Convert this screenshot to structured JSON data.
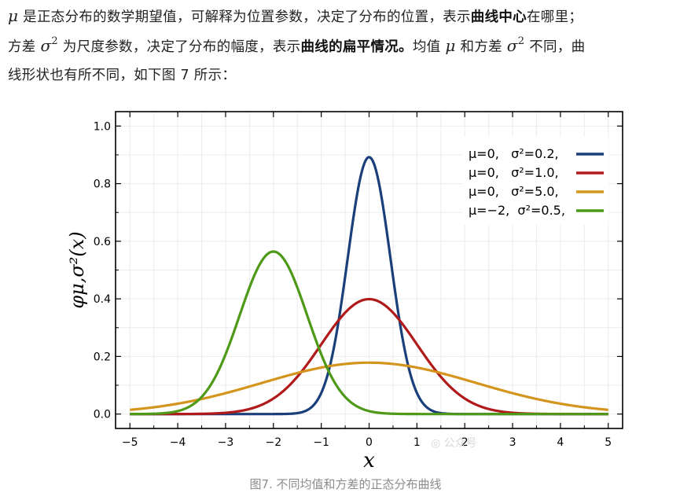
{
  "paragraph": {
    "mu": "μ",
    "sigma": "σ",
    "sq": "2",
    "l1_a": " 是正态分布的数学期望值，可解释为位置参数，决定了分布的位置，表示",
    "l1_b": "曲线中心",
    "l1_c": "在哪里；",
    "l2_a": "方差 ",
    "l2_b": " 为尺度参数，决定了分布的幅度，表示",
    "l2_c": "曲线的扁平情况。",
    "l2_d": "均值 ",
    "l2_e": " 和方差 ",
    "l2_f": " 不同，曲",
    "l3": "线形状也有所不同，如下图 7 所示："
  },
  "chart_data": {
    "type": "line",
    "xlabel": "x",
    "ylabel": "φμ,σ²(x)",
    "xlim": [
      -5.3,
      5.3
    ],
    "ylim": [
      -0.05,
      1.05
    ],
    "xticks": [
      "−5",
      "−4",
      "−3",
      "−2",
      "−1",
      "0",
      "1",
      "2",
      "3",
      "4",
      "5"
    ],
    "yticks": [
      "0.0",
      "0.2",
      "0.4",
      "0.6",
      "0.8",
      "1.0"
    ],
    "grid": true,
    "legend": "top-right",
    "series": [
      {
        "name": "μ=0,   σ²=0.2,",
        "mu": 0,
        "var": 0.2,
        "color": "#1a3f7a"
      },
      {
        "name": "μ=0,   σ²=1.0,",
        "mu": 0,
        "var": 1.0,
        "color": "#b01a1a"
      },
      {
        "name": "μ=0,   σ²=5.0,",
        "mu": 0,
        "var": 5.0,
        "color": "#d4951e"
      },
      {
        "name": "μ=−2,  σ²=0.5,",
        "mu": -2,
        "var": 0.5,
        "color": "#4e9a18"
      }
    ]
  },
  "caption": "图7. 不同均值和方差的正态分布曲线",
  "watermark": "◎ 公众号"
}
